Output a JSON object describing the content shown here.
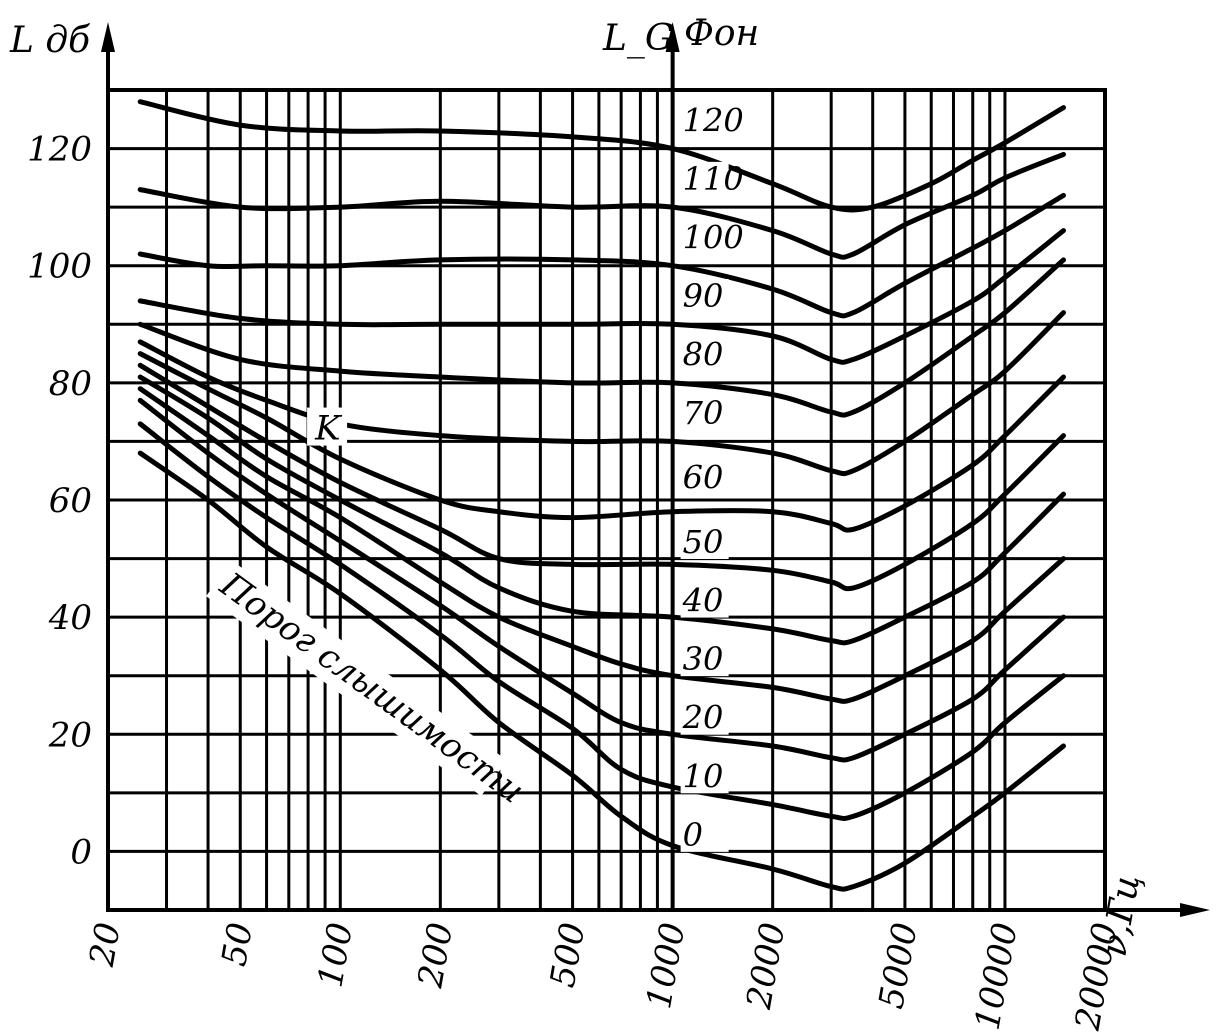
{
  "chart_data": {
    "type": "line",
    "ylabel": "L дб",
    "right_axis_label": "L_G",
    "unit_label": "Фон",
    "xlabel": "ν,Гц",
    "x_scale": "log",
    "xlim": [
      20,
      20000
    ],
    "ylim": [
      -10,
      130
    ],
    "grid": true,
    "x_tick_labels": [
      {
        "value": 20,
        "text": "20"
      },
      {
        "value": 50,
        "text": "50"
      },
      {
        "value": 100,
        "text": "100"
      },
      {
        "value": 200,
        "text": "200"
      },
      {
        "value": 500,
        "text": "500"
      },
      {
        "value": 1000,
        "text": "1000"
      },
      {
        "value": 2000,
        "text": "2000"
      },
      {
        "value": 5000,
        "text": "5000"
      },
      {
        "value": 10000,
        "text": "10000"
      },
      {
        "value": 20000,
        "text": "20000"
      }
    ],
    "y_tick_labels": [
      {
        "value": 0,
        "text": "0"
      },
      {
        "value": 20,
        "text": "20"
      },
      {
        "value": 40,
        "text": "40"
      },
      {
        "value": 60,
        "text": "60"
      },
      {
        "value": 80,
        "text": "80"
      },
      {
        "value": 100,
        "text": "100"
      },
      {
        "value": 120,
        "text": "120"
      }
    ],
    "grid_x": [
      20,
      30,
      40,
      50,
      60,
      70,
      80,
      90,
      100,
      200,
      300,
      400,
      500,
      600,
      700,
      800,
      900,
      1000,
      2000,
      3000,
      4000,
      5000,
      6000,
      7000,
      8000,
      9000,
      10000,
      20000
    ],
    "grid_y": [
      -10,
      0,
      10,
      20,
      30,
      40,
      50,
      60,
      70,
      80,
      90,
      100,
      110,
      120,
      130
    ],
    "phon_labels": [
      {
        "text": "120",
        "y": 125
      },
      {
        "text": "110",
        "y": 115
      },
      {
        "text": "100",
        "y": 105
      },
      {
        "text": "90",
        "y": 95
      },
      {
        "text": "80",
        "y": 85
      },
      {
        "text": "70",
        "y": 75
      },
      {
        "text": "60",
        "y": 64
      },
      {
        "text": "50",
        "y": 53
      },
      {
        "text": "40",
        "y": 43
      },
      {
        "text": "30",
        "y": 33
      },
      {
        "text": "20",
        "y": 23
      },
      {
        "text": "10",
        "y": 13
      },
      {
        "text": "0",
        "y": 3
      }
    ],
    "annotations": [
      {
        "text": "K",
        "x": 90,
        "y": 71
      },
      {
        "text": "Порог слышимости",
        "x": 170,
        "y": 32
      }
    ],
    "series": [
      {
        "x": [
          25,
          50,
          100,
          200,
          500,
          1000,
          2000,
          3000,
          4000,
          6000,
          8000,
          10000,
          15000
        ],
        "y": [
          128,
          124,
          123,
          123,
          122,
          120,
          114,
          110,
          110,
          114,
          118,
          121,
          127
        ]
      },
      {
        "x": [
          25,
          50,
          100,
          200,
          500,
          1000,
          2000,
          3000,
          3500,
          5000,
          8000,
          10000,
          15000
        ],
        "y": [
          113,
          110,
          110,
          111,
          110,
          110,
          106,
          102,
          102,
          107,
          112,
          115,
          119
        ]
      },
      {
        "x": [
          25,
          40,
          60,
          100,
          200,
          500,
          1000,
          2000,
          3000,
          3500,
          5000,
          8000,
          10000,
          15000
        ],
        "y": [
          102,
          100,
          100,
          100,
          101,
          101,
          100,
          96,
          92,
          92,
          97,
          103,
          106,
          112
        ]
      },
      {
        "x": [
          25,
          50,
          100,
          200,
          500,
          1000,
          2000,
          3000,
          3500,
          5000,
          8000,
          10000,
          15000
        ],
        "y": [
          94,
          91,
          90,
          90,
          90,
          90,
          88,
          84,
          84,
          88,
          94,
          98,
          106
        ]
      },
      {
        "x": [
          25,
          50,
          100,
          200,
          500,
          1000,
          2000,
          3000,
          3500,
          5000,
          8000,
          10000,
          15000
        ],
        "y": [
          90,
          84,
          82,
          81,
          80,
          80,
          78,
          75,
          75,
          80,
          88,
          92,
          101
        ]
      },
      {
        "x": [
          25,
          40,
          60,
          100,
          200,
          500,
          1000,
          2000,
          3000,
          3500,
          5000,
          8000,
          10000,
          15000
        ],
        "y": [
          87,
          81,
          77,
          73,
          71,
          70,
          70,
          68,
          65,
          65,
          70,
          78,
          82,
          92
        ]
      },
      {
        "x": [
          25,
          40,
          60,
          100,
          200,
          300,
          500,
          1000,
          2000,
          3000,
          3500,
          5000,
          8000,
          10000,
          15000
        ],
        "y": [
          85,
          79,
          74,
          67,
          60,
          58,
          57,
          58,
          58,
          56,
          55,
          59,
          66,
          71,
          81
        ]
      },
      {
        "x": [
          25,
          40,
          60,
          100,
          200,
          300,
          500,
          1000,
          2000,
          3000,
          3500,
          5000,
          8000,
          10000,
          15000
        ],
        "y": [
          83,
          76,
          70,
          63,
          55,
          50,
          49,
          49,
          48,
          46,
          45,
          49,
          56,
          61,
          71
        ]
      },
      {
        "x": [
          25,
          40,
          60,
          100,
          200,
          300,
          500,
          1000,
          2000,
          3000,
          3500,
          5000,
          8000,
          10000,
          15000
        ],
        "y": [
          81,
          74,
          67,
          60,
          51,
          45,
          41,
          40,
          38,
          36,
          36,
          40,
          46,
          51,
          61
        ]
      },
      {
        "x": [
          25,
          40,
          60,
          100,
          200,
          300,
          500,
          700,
          1000,
          2000,
          3000,
          3500,
          5000,
          8000,
          10000,
          15000
        ],
        "y": [
          79,
          71,
          64,
          57,
          46,
          40,
          35,
          32,
          30,
          28,
          26,
          26,
          30,
          36,
          41,
          50
        ]
      },
      {
        "x": [
          25,
          40,
          60,
          100,
          200,
          300,
          500,
          700,
          1000,
          2000,
          3000,
          3500,
          5000,
          8000,
          10000,
          15000
        ],
        "y": [
          77,
          68,
          61,
          53,
          42,
          35,
          27,
          22,
          20,
          18,
          16,
          16,
          20,
          26,
          31,
          40
        ]
      },
      {
        "x": [
          25,
          40,
          60,
          100,
          200,
          300,
          500,
          700,
          1000,
          2000,
          3000,
          3500,
          5000,
          8000,
          10000,
          15000
        ],
        "y": [
          73,
          64,
          57,
          49,
          37,
          29,
          21,
          14,
          11,
          8,
          6,
          6,
          10,
          17,
          22,
          30
        ]
      },
      {
        "x": [
          25,
          40,
          60,
          100,
          200,
          300,
          500,
          700,
          1000,
          2000,
          3000,
          3500,
          5000,
          8000,
          10000,
          15000
        ],
        "y": [
          68,
          60,
          52,
          44,
          31,
          22,
          13,
          6,
          1,
          -3,
          -6,
          -6,
          -2,
          6,
          10,
          18
        ]
      }
    ]
  }
}
